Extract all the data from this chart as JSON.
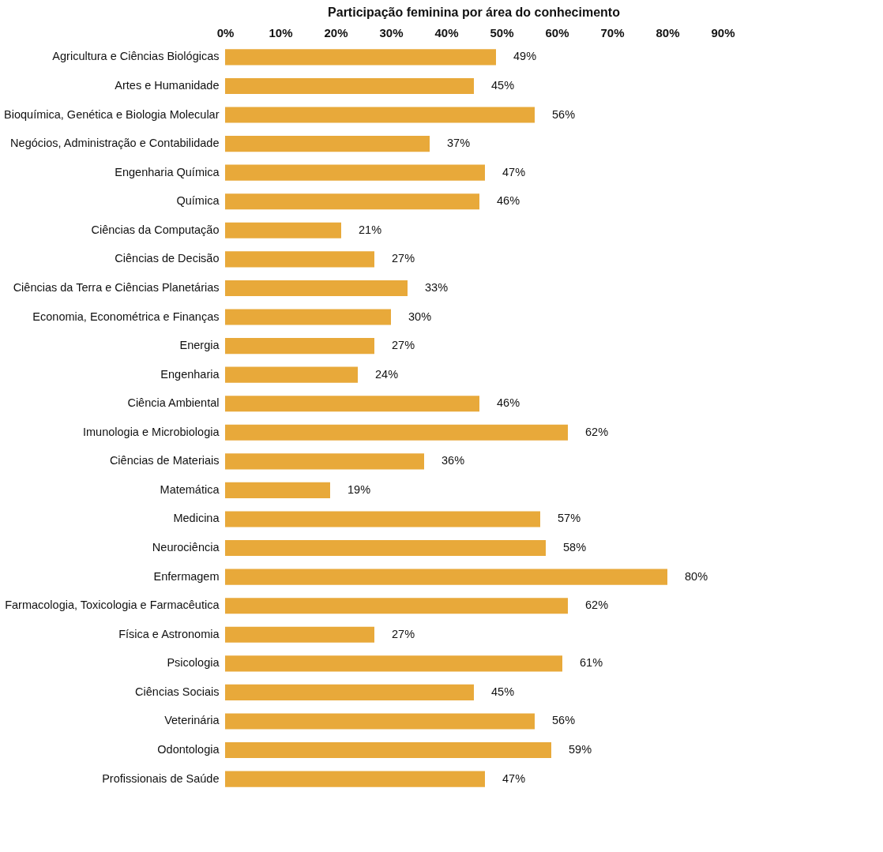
{
  "chart_data": {
    "type": "bar",
    "orientation": "horizontal",
    "title": "Participação feminina por área do conhecimento",
    "categories": [
      "Agricultura e Ciências Biológicas",
      "Artes e Humanidade",
      "Bioquímica, Genética e Biologia Molecular",
      "Negócios, Administração e Contabilidade",
      "Engenharia Química",
      "Química",
      "Ciências da Computação",
      "Ciências de Decisão",
      "Ciências da Terra e Ciências Planetárias",
      "Economia, Econométrica e Finanças",
      "Energia",
      "Engenharia",
      "Ciência Ambiental",
      "Imunologia e Microbiologia",
      "Ciências de Materiais",
      "Matemática",
      "Medicina",
      "Neurociência",
      "Enfermagem",
      "Farmacologia, Toxicologia e Farmacêutica",
      "Física e Astronomia",
      "Psicologia",
      "Ciências Sociais",
      "Veterinária",
      "Odontologia",
      "Profissionais de Saúde"
    ],
    "values": [
      49,
      45,
      56,
      37,
      47,
      46,
      21,
      27,
      33,
      30,
      27,
      24,
      46,
      62,
      36,
      19,
      57,
      58,
      80,
      62,
      27,
      61,
      45,
      56,
      59,
      47
    ],
    "value_labels": [
      "49%",
      "45%",
      "56%",
      "37%",
      "47%",
      "46%",
      "21%",
      "27%",
      "33%",
      "30%",
      "27%",
      "24%",
      "46%",
      "62%",
      "36%",
      "19%",
      "57%",
      "58%",
      "80%",
      "62%",
      "27%",
      "61%",
      "45%",
      "56%",
      "59%",
      "47%"
    ],
    "color": "#e8a93a",
    "xlim": [
      0,
      90
    ],
    "xticks": [
      {
        "value": 0,
        "label": "0%"
      },
      {
        "value": 10,
        "label": "10%"
      },
      {
        "value": 20,
        "label": "20%"
      },
      {
        "value": 30,
        "label": "30%"
      },
      {
        "value": 40,
        "label": "40%"
      },
      {
        "value": 50,
        "label": "50%"
      },
      {
        "value": 60,
        "label": "60%"
      },
      {
        "value": 70,
        "label": "70%"
      },
      {
        "value": 80,
        "label": "80%"
      },
      {
        "value": 90,
        "label": "90%"
      }
    ]
  }
}
